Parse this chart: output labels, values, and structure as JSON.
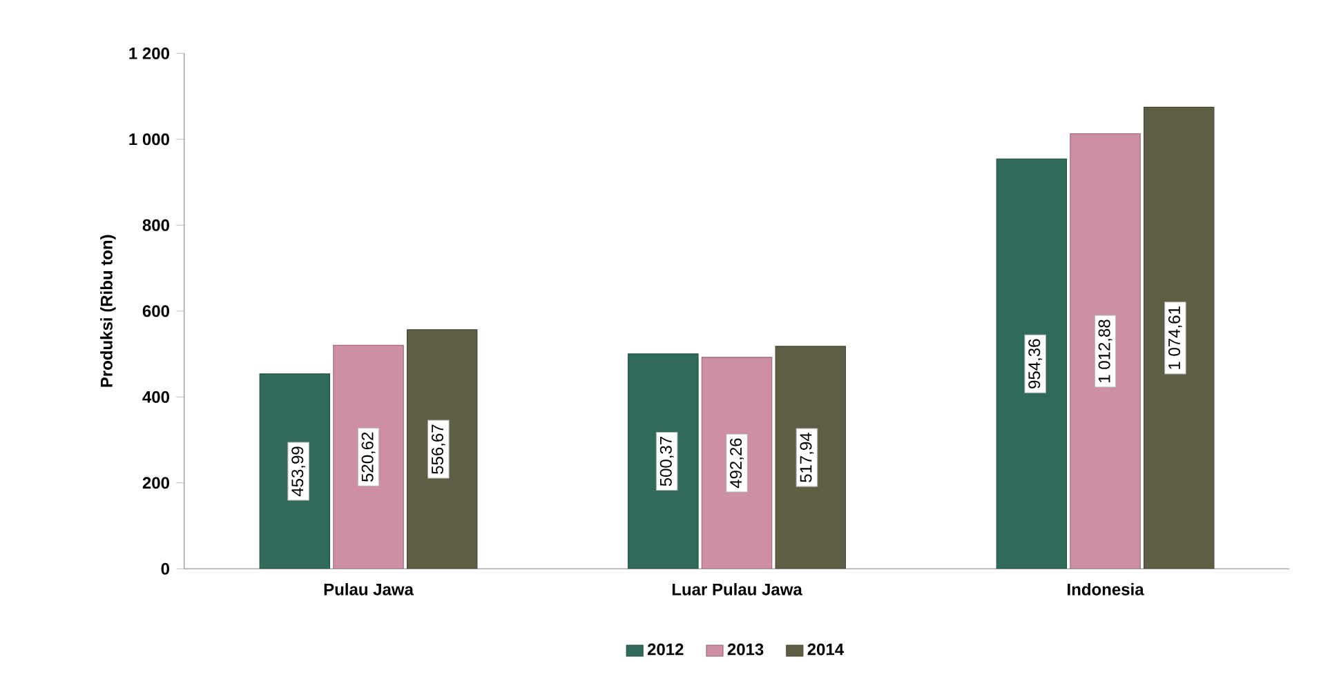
{
  "chart_data": {
    "type": "bar",
    "ylabel": "Produksi (Ribu ton)",
    "categories": [
      "Pulau Jawa",
      "Luar Pulau Jawa",
      "Indonesia"
    ],
    "series": [
      {
        "name": "2012",
        "color": "#2f6a5a",
        "values": [
          453.99,
          500.37,
          954.36
        ],
        "value_labels": [
          "453,99",
          "500,37",
          "954,36"
        ]
      },
      {
        "name": "2013",
        "color": "#cf8fa3",
        "values": [
          520.62,
          492.26,
          1012.88
        ],
        "value_labels": [
          "520,62",
          "492,26",
          "1 012,88"
        ]
      },
      {
        "name": "2014",
        "color": "#5e5e45",
        "values": [
          556.67,
          517.94,
          1074.61
        ],
        "value_labels": [
          "556,67",
          "517,94",
          "1 074,61"
        ]
      }
    ],
    "ylim": [
      0,
      1200
    ],
    "yticks": [
      0,
      200,
      400,
      600,
      800,
      {
        "value": 1000,
        "label": "1 000"
      },
      {
        "value": 1200,
        "label": "1 200"
      }
    ],
    "legend": "bottom",
    "grid": false
  }
}
